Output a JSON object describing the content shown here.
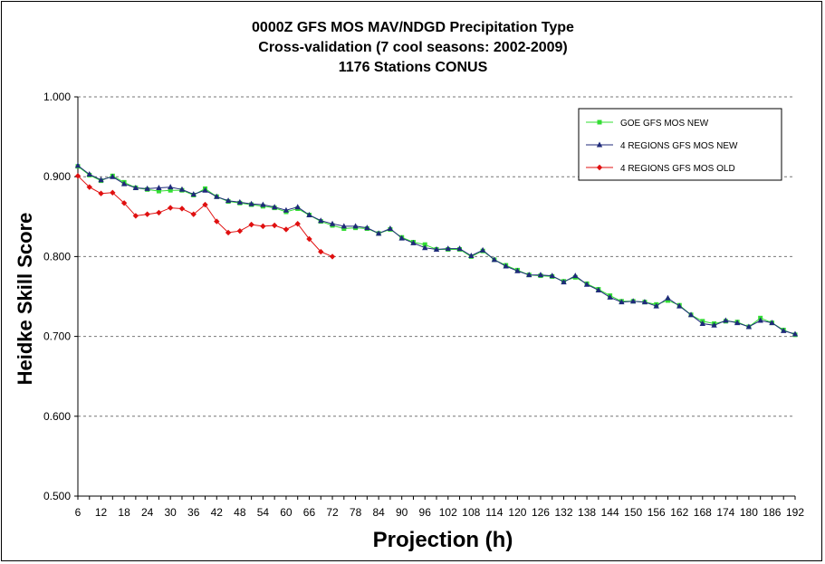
{
  "chart_data": {
    "type": "line",
    "title_lines": [
      "0000Z GFS MOS MAV/NDGD Precipitation Type",
      "Cross-validation (7 cool seasons: 2002-2009)",
      "1176 Stations CONUS"
    ],
    "xlabel": "Projection (h)",
    "ylabel": "Heidke Skill Score",
    "ylim": [
      0.5,
      1.0
    ],
    "y_ticks": [
      "0.500",
      "0.600",
      "0.700",
      "0.800",
      "0.900",
      "1.000"
    ],
    "x_ticks": [
      6,
      12,
      18,
      24,
      30,
      36,
      42,
      48,
      54,
      60,
      66,
      72,
      78,
      84,
      90,
      96,
      102,
      108,
      114,
      120,
      126,
      132,
      138,
      144,
      150,
      156,
      162,
      168,
      174,
      180,
      186,
      192
    ],
    "xlim": [
      6,
      192
    ],
    "grid": "horizontal dashed",
    "legend_position": "top-right",
    "series": [
      {
        "name": "GOE GFS MOS NEW",
        "color": "#33dd33",
        "marker": "square",
        "x": [
          6,
          9,
          12,
          15,
          18,
          21,
          24,
          27,
          30,
          33,
          36,
          39,
          42,
          45,
          48,
          51,
          54,
          57,
          60,
          63,
          66,
          69,
          72,
          75,
          78,
          81,
          84,
          87,
          90,
          93,
          96,
          99,
          102,
          105,
          108,
          111,
          114,
          117,
          120,
          123,
          126,
          129,
          132,
          135,
          138,
          141,
          144,
          147,
          150,
          153,
          156,
          159,
          162,
          165,
          168,
          171,
          174,
          177,
          180,
          183,
          186,
          189,
          192
        ],
        "y": [
          0.913,
          0.902,
          0.895,
          0.901,
          0.893,
          0.886,
          0.884,
          0.882,
          0.883,
          0.883,
          0.877,
          0.885,
          0.875,
          0.869,
          0.867,
          0.865,
          0.863,
          0.861,
          0.856,
          0.86,
          0.852,
          0.844,
          0.839,
          0.835,
          0.836,
          0.835,
          0.829,
          0.834,
          0.824,
          0.818,
          0.815,
          0.809,
          0.809,
          0.809,
          0.8,
          0.807,
          0.796,
          0.789,
          0.783,
          0.777,
          0.776,
          0.775,
          0.769,
          0.774,
          0.766,
          0.759,
          0.751,
          0.744,
          0.744,
          0.743,
          0.74,
          0.745,
          0.739,
          0.727,
          0.719,
          0.716,
          0.719,
          0.718,
          0.712,
          0.723,
          0.717,
          0.708,
          0.702
        ]
      },
      {
        "name": "4 REGIONS GFS MOS NEW",
        "color": "#1f2a7a",
        "marker": "triangle",
        "x": [
          6,
          9,
          12,
          15,
          18,
          21,
          24,
          27,
          30,
          33,
          36,
          39,
          42,
          45,
          48,
          51,
          54,
          57,
          60,
          63,
          66,
          69,
          72,
          75,
          78,
          81,
          84,
          87,
          90,
          93,
          96,
          99,
          102,
          105,
          108,
          111,
          114,
          117,
          120,
          123,
          126,
          129,
          132,
          135,
          138,
          141,
          144,
          147,
          150,
          153,
          156,
          159,
          162,
          165,
          168,
          171,
          174,
          177,
          180,
          183,
          186,
          189,
          192
        ],
        "y": [
          0.914,
          0.903,
          0.896,
          0.9,
          0.891,
          0.886,
          0.885,
          0.886,
          0.887,
          0.884,
          0.878,
          0.883,
          0.875,
          0.87,
          0.868,
          0.866,
          0.865,
          0.862,
          0.858,
          0.862,
          0.852,
          0.845,
          0.841,
          0.838,
          0.838,
          0.836,
          0.829,
          0.835,
          0.823,
          0.817,
          0.811,
          0.809,
          0.81,
          0.81,
          0.801,
          0.808,
          0.796,
          0.788,
          0.782,
          0.777,
          0.777,
          0.776,
          0.768,
          0.776,
          0.765,
          0.758,
          0.749,
          0.743,
          0.744,
          0.743,
          0.738,
          0.748,
          0.738,
          0.727,
          0.716,
          0.714,
          0.72,
          0.717,
          0.712,
          0.72,
          0.717,
          0.707,
          0.703
        ]
      },
      {
        "name": "4 REGIONS GFS MOS OLD",
        "color": "#e01010",
        "marker": "diamond",
        "x": [
          6,
          9,
          12,
          15,
          18,
          21,
          24,
          27,
          30,
          33,
          36,
          39,
          42,
          45,
          48,
          51,
          54,
          57,
          60,
          63,
          66,
          69,
          72
        ],
        "y": [
          0.901,
          0.887,
          0.879,
          0.88,
          0.867,
          0.851,
          0.853,
          0.855,
          0.861,
          0.86,
          0.853,
          0.865,
          0.844,
          0.83,
          0.832,
          0.84,
          0.838,
          0.839,
          0.834,
          0.841,
          0.822,
          0.806,
          0.8
        ]
      }
    ]
  }
}
